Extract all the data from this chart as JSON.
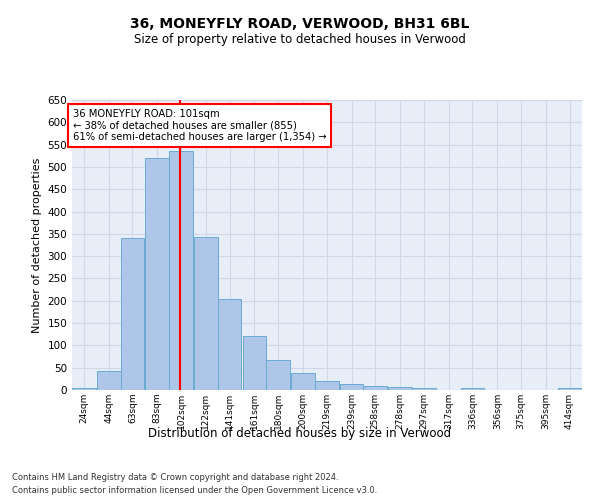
{
  "title1": "36, MONEYFLY ROAD, VERWOOD, BH31 6BL",
  "title2": "Size of property relative to detached houses in Verwood",
  "xlabel": "Distribution of detached houses by size in Verwood",
  "ylabel": "Number of detached properties",
  "footnote1": "Contains HM Land Registry data © Crown copyright and database right 2024.",
  "footnote2": "Contains public sector information licensed under the Open Government Licence v3.0.",
  "bar_labels": [
    "24sqm",
    "44sqm",
    "63sqm",
    "83sqm",
    "102sqm",
    "122sqm",
    "141sqm",
    "161sqm",
    "180sqm",
    "200sqm",
    "219sqm",
    "239sqm",
    "258sqm",
    "278sqm",
    "297sqm",
    "317sqm",
    "336sqm",
    "356sqm",
    "375sqm",
    "395sqm",
    "414sqm"
  ],
  "bar_values": [
    5,
    42,
    340,
    520,
    535,
    343,
    205,
    120,
    67,
    37,
    20,
    13,
    10,
    7,
    5,
    0,
    5,
    0,
    0,
    0,
    5
  ],
  "bar_color": "#aec6e8",
  "bar_edge_color": "#6aaad4",
  "vline_x": 101,
  "vline_color": "red",
  "annotation_text": "36 MONEYFLY ROAD: 101sqm\n← 38% of detached houses are smaller (855)\n61% of semi-detached houses are larger (1,354) →",
  "annotation_box_color": "white",
  "annotation_box_edge_color": "red",
  "ylim": [
    0,
    650
  ],
  "yticks": [
    0,
    50,
    100,
    150,
    200,
    250,
    300,
    350,
    400,
    450,
    500,
    550,
    600,
    650
  ],
  "grid_color": "#d0d8e8",
  "bg_color": "#e8eef8"
}
